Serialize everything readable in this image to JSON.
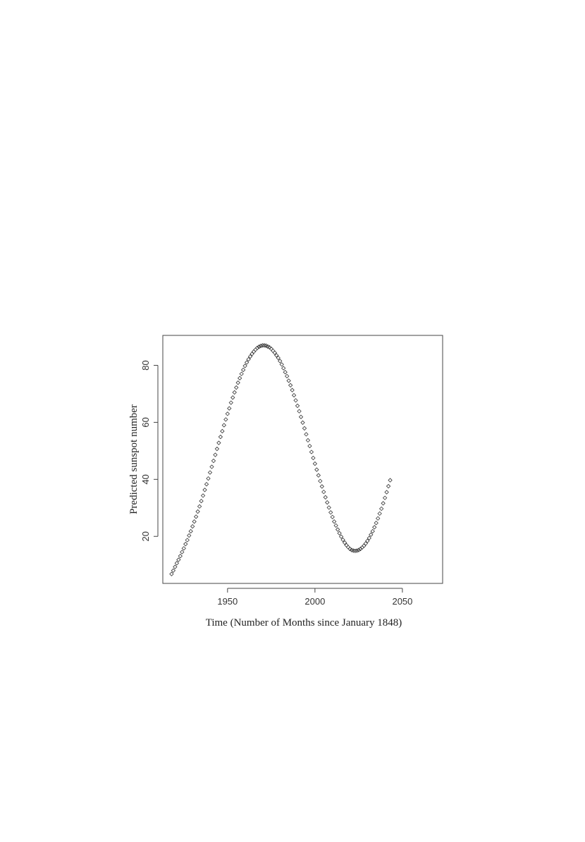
{
  "chart_data": {
    "type": "scatter",
    "title": "",
    "xlabel": "Time (Number of Months since January 1848)",
    "ylabel": "Predicted sunspot number",
    "xlim": [
      1913,
      2073
    ],
    "ylim": [
      3.5,
      90.5
    ],
    "x_ticks": [
      1950,
      2000,
      2050
    ],
    "y_ticks": [
      20,
      40,
      60,
      80
    ],
    "x_tick_labels": [
      "1950",
      "2000",
      "2050"
    ],
    "y_tick_labels": [
      "20",
      "40",
      "60",
      "80"
    ],
    "marker": "diamond",
    "grid": false,
    "legend": "none",
    "series": [
      {
        "x_start": 1918,
        "x_step": 1,
        "values": [
          6.8,
          8.0,
          9.3,
          10.6,
          11.8,
          13.1,
          14.5,
          15.8,
          17.3,
          18.7,
          20.3,
          21.8,
          23.5,
          25.2,
          26.9,
          28.7,
          30.5,
          32.4,
          34.3,
          36.3,
          38.3,
          40.3,
          42.4,
          44.4,
          46.5,
          48.6,
          50.7,
          52.8,
          54.9,
          56.9,
          59.0,
          61.0,
          63.0,
          64.9,
          66.9,
          68.7,
          70.5,
          72.2,
          73.9,
          75.5,
          77.0,
          78.4,
          79.8,
          81.0,
          82.1,
          83.1,
          84.0,
          84.8,
          85.5,
          86.1,
          86.5,
          86.8,
          87.0,
          87.0,
          86.9,
          86.6,
          86.3,
          85.8,
          85.1,
          84.4,
          83.5,
          82.6,
          81.5,
          80.3,
          79.0,
          77.6,
          76.2,
          74.6,
          73.0,
          71.3,
          69.5,
          67.7,
          65.8,
          63.9,
          61.9,
          59.9,
          57.9,
          55.8,
          53.7,
          51.7,
          49.6,
          47.5,
          45.5,
          43.4,
          41.4,
          39.4,
          37.5,
          35.6,
          33.7,
          31.9,
          30.1,
          28.4,
          26.8,
          25.2,
          23.8,
          22.4,
          21.1,
          19.9,
          18.8,
          17.8,
          16.9,
          16.2,
          15.6,
          15.2,
          15.0,
          14.9,
          15.0,
          15.2,
          15.6,
          16.1,
          16.7,
          17.5,
          18.4,
          19.4,
          20.6,
          21.8,
          23.2,
          24.7,
          26.3,
          28.0,
          29.7,
          31.6,
          33.5,
          35.5,
          37.6,
          39.7
        ]
      }
    ]
  }
}
